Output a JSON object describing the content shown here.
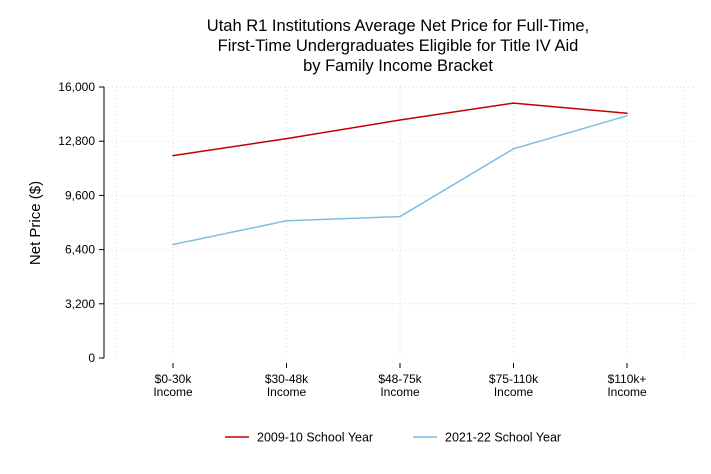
{
  "chart_data": {
    "type": "line",
    "title": [
      "Utah R1 Institutions Average Net Price for Full-Time,",
      "First-Time Undergraduates Eligible for Title IV Aid",
      "by Family Income Bracket"
    ],
    "ylabel": "Net Price ($)",
    "xlabel": "",
    "categories": [
      [
        "$0-30k",
        "Income"
      ],
      [
        "$30-48k",
        "Income"
      ],
      [
        "$48-75k",
        "Income"
      ],
      [
        "$75-110k",
        "Income"
      ],
      [
        "$110k+",
        "Income"
      ]
    ],
    "ylim": [
      0,
      16000
    ],
    "yticks": [
      0,
      3200,
      6400,
      9600,
      12800,
      16000
    ],
    "ytick_labels": [
      "0",
      "3,200",
      "6,400",
      "9,600",
      "12,800",
      "16,000"
    ],
    "grid": true,
    "legend_position": "bottom",
    "series": [
      {
        "name": "2009-10 School Year",
        "color": "#c00000",
        "values": [
          11950,
          12950,
          14050,
          15050,
          14450
        ]
      },
      {
        "name": "2021-22 School Year",
        "color": "#7fbfe0",
        "values": [
          6700,
          8100,
          8350,
          12350,
          14300
        ]
      }
    ]
  }
}
